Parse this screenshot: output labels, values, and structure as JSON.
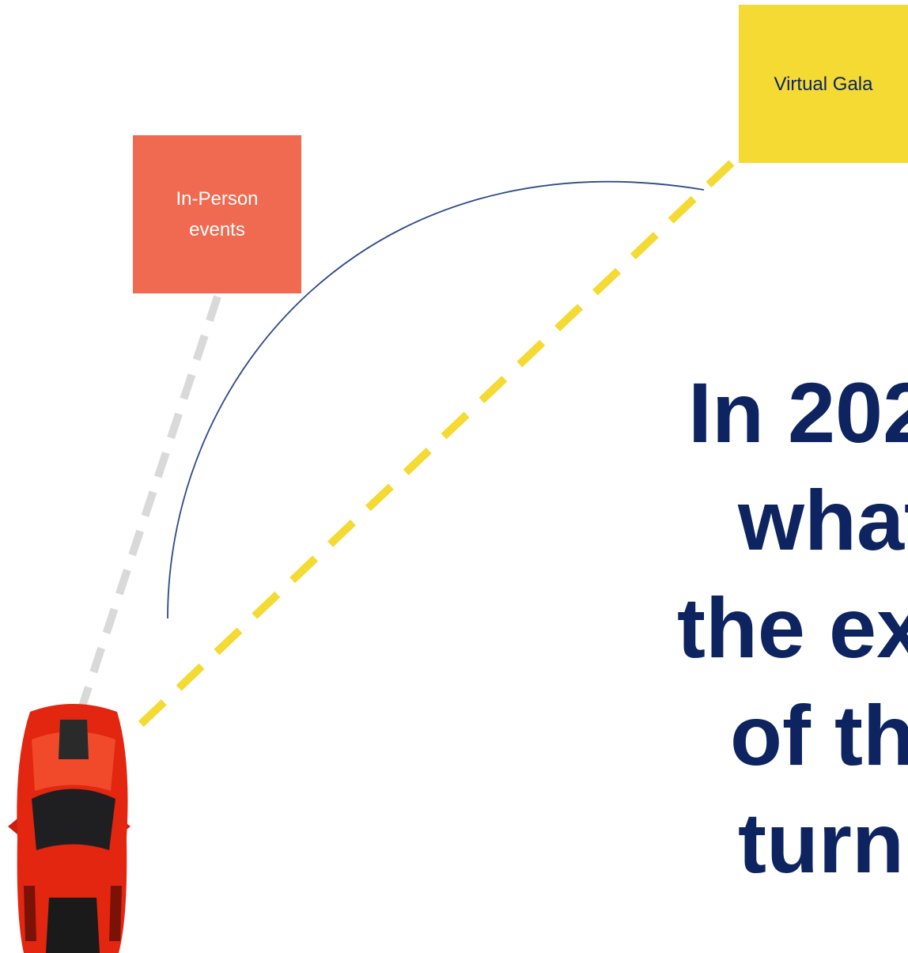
{
  "boxes": {
    "virtual": "Virtual Gala",
    "in_person": [
      "In-Person",
      "events"
    ]
  },
  "headline": [
    "In 202",
    "what",
    "the ex",
    "of th",
    "turn"
  ]
}
